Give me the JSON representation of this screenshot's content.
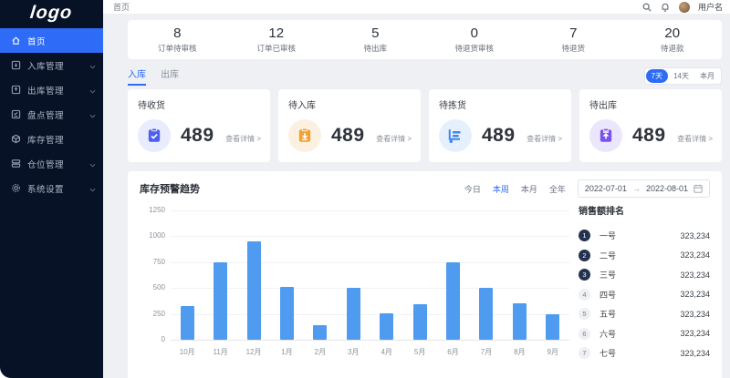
{
  "sidebar": {
    "logo": "logo",
    "items": [
      {
        "label": "首页",
        "icon": "home-icon",
        "active": true,
        "chevron": false
      },
      {
        "label": "入库管理",
        "icon": "inbox-icon",
        "active": false,
        "chevron": true
      },
      {
        "label": "出库管理",
        "icon": "outbox-icon",
        "active": false,
        "chevron": true
      },
      {
        "label": "盘点管理",
        "icon": "checklist-icon",
        "active": false,
        "chevron": true
      },
      {
        "label": "库存管理",
        "icon": "cube-icon",
        "active": false,
        "chevron": false
      },
      {
        "label": "仓位管理",
        "icon": "shelf-icon",
        "active": false,
        "chevron": true
      },
      {
        "label": "系统设置",
        "icon": "gear-icon",
        "active": false,
        "chevron": true
      }
    ]
  },
  "header": {
    "breadcrumb": "首页",
    "username": "用户名"
  },
  "stats": [
    {
      "value": "8",
      "label": "订单待审核"
    },
    {
      "value": "12",
      "label": "订单已审核"
    },
    {
      "value": "5",
      "label": "待出库"
    },
    {
      "value": "0",
      "label": "待退货审核"
    },
    {
      "value": "7",
      "label": "待退货"
    },
    {
      "value": "20",
      "label": "待退款"
    }
  ],
  "tabs": [
    {
      "label": "入库",
      "active": true
    },
    {
      "label": "出库",
      "active": false
    }
  ],
  "ranges": [
    {
      "label": "7天",
      "active": true
    },
    {
      "label": "14天",
      "active": false
    },
    {
      "label": "本月",
      "active": false
    }
  ],
  "cards": [
    {
      "title": "待收货",
      "value": "489",
      "link": "查看详情 >",
      "icon": "clipboard-check-icon",
      "color": "#4c5ff0",
      "bg": "#e9ecfc"
    },
    {
      "title": "待入库",
      "value": "489",
      "link": "查看详情 >",
      "icon": "clipboard-download-icon",
      "color": "#f0a236",
      "bg": "#fcf1e0"
    },
    {
      "title": "待拣货",
      "value": "489",
      "link": "查看详情 >",
      "icon": "trolley-icon",
      "color": "#3f86f0",
      "bg": "#e6f0fc"
    },
    {
      "title": "待出库",
      "value": "489",
      "link": "查看详情 >",
      "icon": "clipboard-upload-icon",
      "color": "#7a52f0",
      "bg": "#ece6fc"
    }
  ],
  "chart_section": {
    "title": "库存预警趋势",
    "filters": [
      {
        "label": "今日",
        "active": false
      },
      {
        "label": "本周",
        "active": true
      },
      {
        "label": "本月",
        "active": false
      },
      {
        "label": "全年",
        "active": false
      }
    ],
    "date_start": "2022-07-01",
    "date_arrow": "→",
    "date_end": "2022-08-01"
  },
  "chart_data": {
    "type": "bar",
    "title": "库存预警趋势",
    "categories": [
      "10月",
      "11月",
      "12月",
      "1月",
      "2月",
      "3月",
      "4月",
      "5月",
      "6月",
      "7月",
      "8月",
      "9月"
    ],
    "values": [
      330,
      750,
      950,
      510,
      140,
      505,
      255,
      340,
      750,
      505,
      350,
      250
    ],
    "xlabel": "",
    "ylabel": "",
    "ylim": [
      0,
      1250
    ],
    "yticks": [
      0,
      250,
      500,
      750,
      1000,
      1250
    ],
    "grid": true,
    "legend": false,
    "bar_color": "#4f9bf0"
  },
  "ranking": {
    "title": "销售额排名",
    "items": [
      {
        "rank": "1",
        "name": "一号",
        "value": "323,234"
      },
      {
        "rank": "2",
        "name": "二号",
        "value": "323,234"
      },
      {
        "rank": "3",
        "name": "三号",
        "value": "323,234"
      },
      {
        "rank": "4",
        "name": "四号",
        "value": "323,234"
      },
      {
        "rank": "5",
        "name": "五号",
        "value": "323,234"
      },
      {
        "rank": "6",
        "name": "六号",
        "value": "323,234"
      },
      {
        "rank": "7",
        "name": "七号",
        "value": "323,234"
      }
    ]
  }
}
